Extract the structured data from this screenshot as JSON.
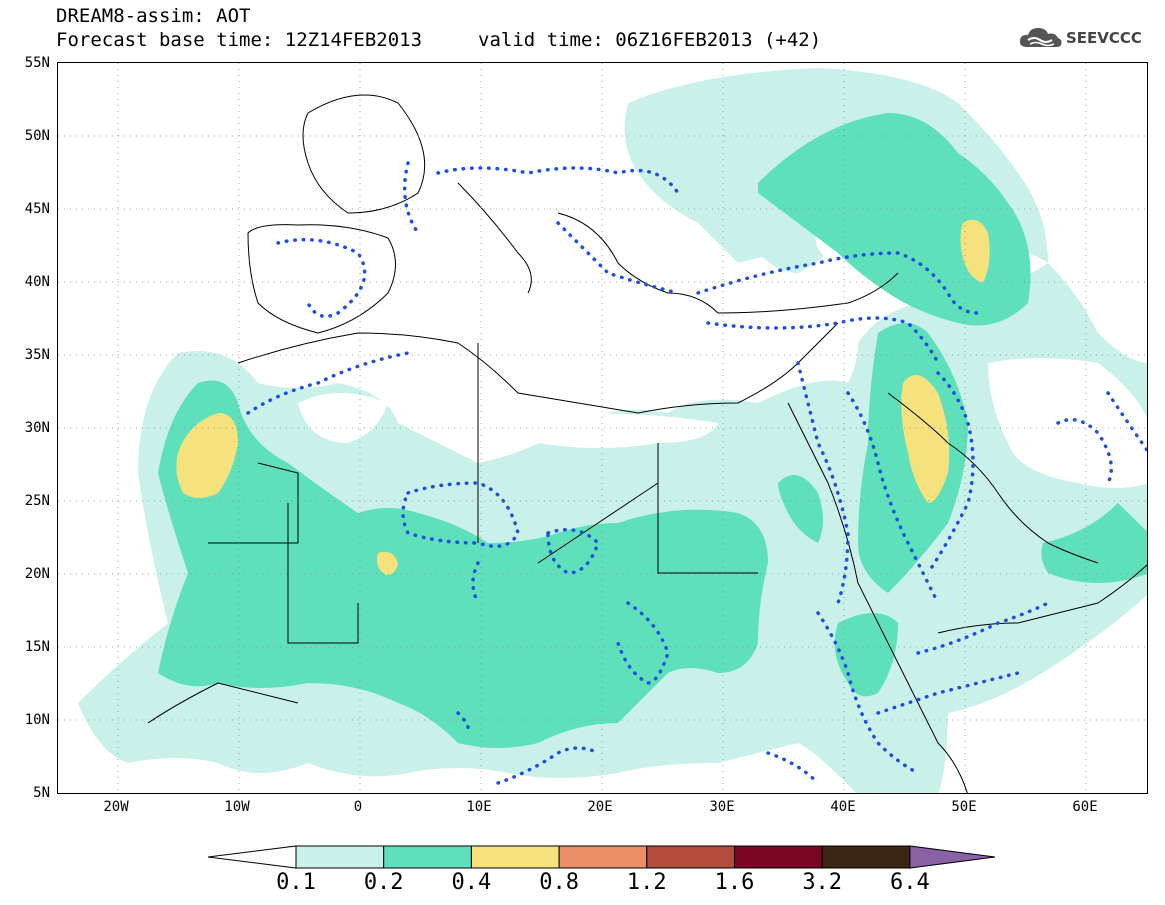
{
  "header": {
    "title": "DREAM8-assim: AOT",
    "base_time": "Forecast base time: 12Z14FEB2013",
    "valid_time": "valid time: 06Z16FEB2013 (+42)"
  },
  "logo": {
    "text": "SEEVCCC",
    "icon": "cloud-icon"
  },
  "map": {
    "projection": "equirectangular",
    "lon_range": [
      -25,
      65
    ],
    "lat_range": [
      5,
      55
    ],
    "lat_labels": [
      "55N",
      "50N",
      "45N",
      "40N",
      "35N",
      "30N",
      "25N",
      "20N",
      "15N",
      "10N",
      "5N"
    ],
    "lon_labels": [
      "20W",
      "10W",
      "0",
      "10E",
      "20E",
      "30E",
      "40E",
      "50E",
      "60E"
    ]
  },
  "colorbar": {
    "labels": [
      "0.1",
      "0.2",
      "0.4",
      "0.8",
      "1.2",
      "1.6",
      "3.2",
      "6.4"
    ],
    "colors": [
      "#ffffff",
      "#c9f1ea",
      "#5ee0bb",
      "#f5e27c",
      "#ea8e67",
      "#b24d3b",
      "#7a0623",
      "#3d2513",
      "#8a61a5"
    ]
  },
  "colors": {
    "aot_0_1": "#c9f1ea",
    "aot_0_2": "#5ee0bb",
    "aot_0_4": "#f5e27c",
    "dotted_contour": "#1f4fe0"
  }
}
